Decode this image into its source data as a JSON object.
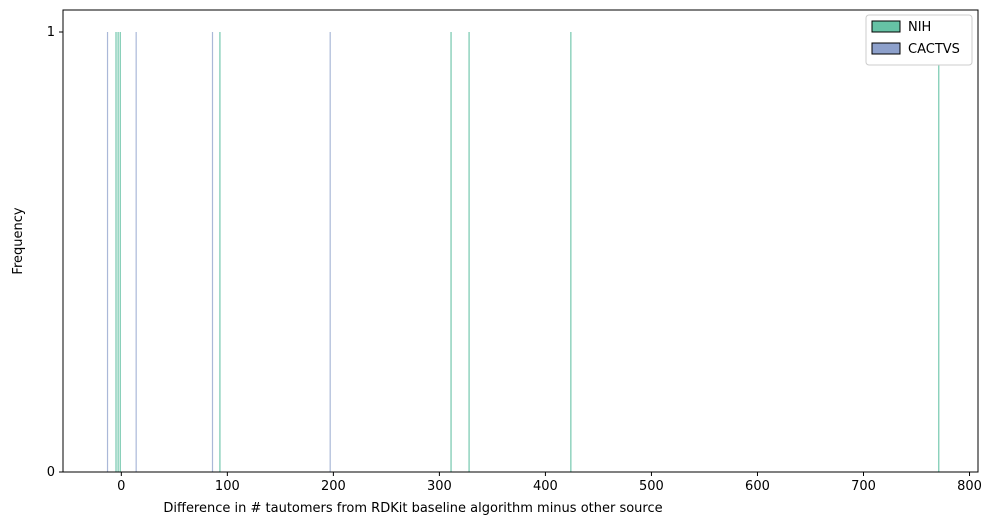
{
  "chart_data": {
    "type": "bar",
    "xlabel": "Difference in # tautomers from RDKit baseline algorithm minus other source",
    "ylabel": "Frequency",
    "xlim": [
      -55,
      808
    ],
    "ylim": [
      0,
      1.05
    ],
    "xticks": [
      0,
      100,
      200,
      300,
      400,
      500,
      600,
      700,
      800
    ],
    "xtick_labels": [
      "0",
      "100",
      "200",
      "300",
      "400",
      "500",
      "600",
      "700",
      "800"
    ],
    "yticks": [
      0,
      1
    ],
    "ytick_labels": [
      "0",
      "1"
    ],
    "legend_position": "top-right",
    "series": [
      {
        "name": "NIH",
        "color": "#66c2a5",
        "values": [
          -5,
          -3,
          -1,
          93,
          311,
          328,
          424,
          771
        ]
      },
      {
        "name": "CACTVS",
        "color": "#8da0cb",
        "values": [
          -13,
          14,
          86,
          197
        ]
      }
    ]
  }
}
